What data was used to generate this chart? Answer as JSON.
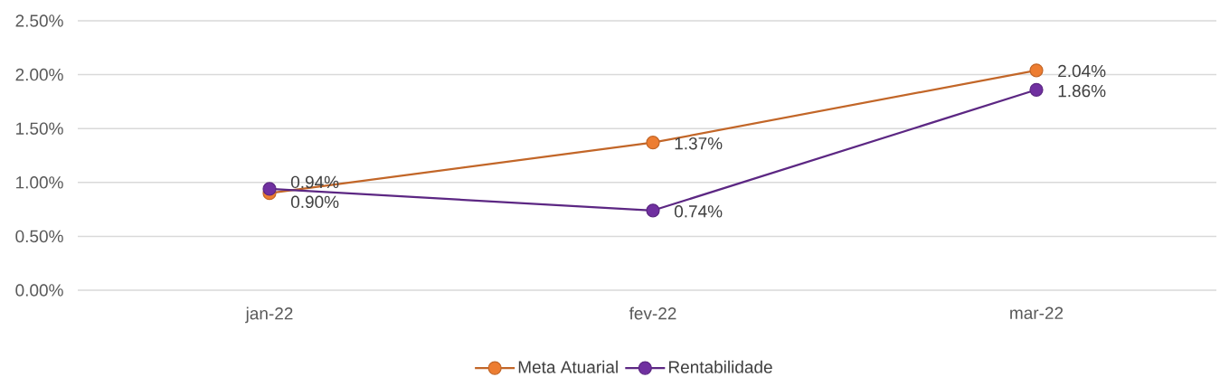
{
  "chart_data": {
    "type": "line",
    "categories": [
      "jan-22",
      "fev-22",
      "mar-22"
    ],
    "series": [
      {
        "name": "Meta Atuarial",
        "color": "#ed7d31",
        "values": [
          0.9,
          1.37,
          2.04
        ],
        "value_labels": [
          "0.90%",
          "1.37%",
          "2.04%"
        ]
      },
      {
        "name": "Rentabilidade",
        "color": "#7030a0",
        "values": [
          0.94,
          0.74,
          1.86
        ],
        "value_labels": [
          "0.94%",
          "0.74%",
          "1.86%"
        ]
      }
    ],
    "ylim": [
      0,
      2.5
    ],
    "yticks": [
      {
        "value": 0,
        "label": "0.00%"
      },
      {
        "value": 0.5,
        "label": "0.50%"
      },
      {
        "value": 1,
        "label": "1.00%"
      },
      {
        "value": 1.5,
        "label": "1.50%"
      },
      {
        "value": 2,
        "label": "2.00%"
      },
      {
        "value": 2.5,
        "label": "2.50%"
      }
    ],
    "grid": "y",
    "legend": "bottom",
    "marker": "circle",
    "line_style": "solid"
  }
}
